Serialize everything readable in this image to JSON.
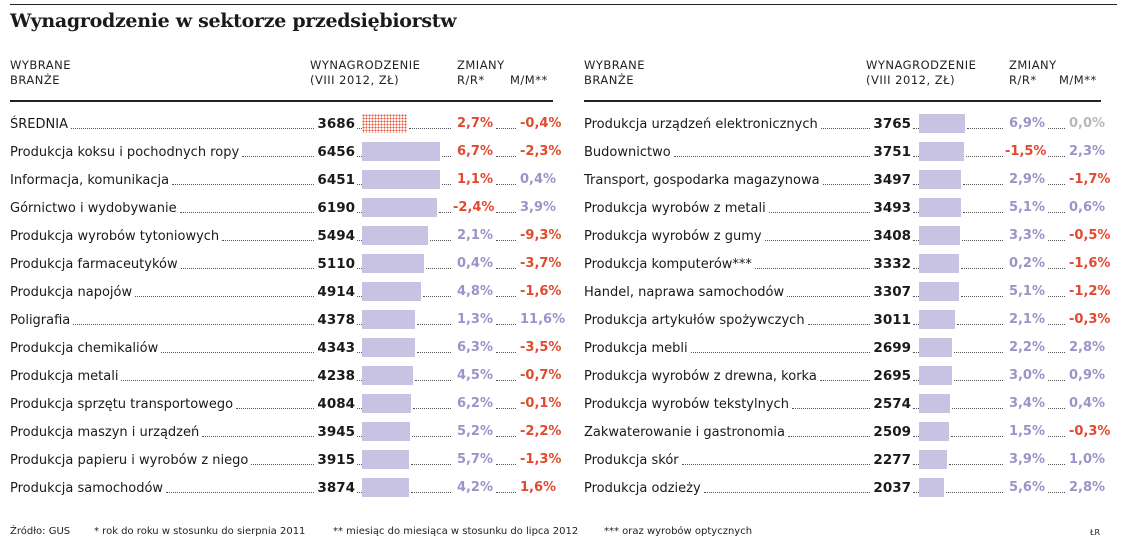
{
  "title": "Wynagrodzenie w sektorze przedsiębiorstw",
  "headers": {
    "col1": [
      "WYBRANE",
      "BRANŻE"
    ],
    "col2": [
      "WYNAGRODZENIE",
      "(VIII 2012, ZŁ)"
    ],
    "col3": "ZMIANY",
    "rr": "R/R*",
    "mm": "M/M**"
  },
  "colors": {
    "positive": "#9b94c9",
    "negative": "#e04a2e",
    "neutral": "#b8b8b8",
    "bar": "#c8c3e2",
    "average_pattern": "#e4533a"
  },
  "chart_data": [
    {
      "type": "bar",
      "xlabel": "WYNAGRODZENIE (VIII 2012, ZŁ)",
      "rows": [
        {
          "label": "ŚREDNIA",
          "value": 3686,
          "rr": "2,7%",
          "mm": "-0,4%",
          "rr_color": "negative",
          "mm_color": "negative",
          "average": true
        },
        {
          "label": "Produkcja koksu i pochodnych ropy",
          "value": 6456,
          "rr": "6,7%",
          "mm": "-2,3%",
          "rr_color": "negative",
          "mm_color": "negative"
        },
        {
          "label": "Informacja, komunikacja",
          "value": 6451,
          "rr": "1,1%",
          "mm": "0,4%",
          "rr_color": "negative",
          "mm_color": "positive"
        },
        {
          "label": "Górnictwo i wydobywanie",
          "value": 6190,
          "rr": "-2,4%",
          "mm": "3,9%",
          "rr_color": "negative",
          "mm_color": "positive"
        },
        {
          "label": "Produkcja wyrobów tytoniowych",
          "value": 5494,
          "rr": "2,1%",
          "mm": "-9,3%",
          "rr_color": "positive",
          "mm_color": "negative"
        },
        {
          "label": "Produkcja farmaceutyków",
          "value": 5110,
          "rr": "0,4%",
          "mm": "-3,7%",
          "rr_color": "positive",
          "mm_color": "negative"
        },
        {
          "label": "Produkcja napojów",
          "value": 4914,
          "rr": "4,8%",
          "mm": "-1,6%",
          "rr_color": "positive",
          "mm_color": "negative"
        },
        {
          "label": "Poligrafia",
          "value": 4378,
          "rr": "1,3%",
          "mm": "11,6%",
          "rr_color": "positive",
          "mm_color": "positive"
        },
        {
          "label": "Produkcja chemikaliów",
          "value": 4343,
          "rr": "6,3%",
          "mm": "-3,5%",
          "rr_color": "positive",
          "mm_color": "negative"
        },
        {
          "label": "Produkcja metali",
          "value": 4238,
          "rr": "4,5%",
          "mm": "-0,7%",
          "rr_color": "positive",
          "mm_color": "negative"
        },
        {
          "label": "Produkcja sprzętu transportowego",
          "value": 4084,
          "rr": "6,2%",
          "mm": "-0,1%",
          "rr_color": "positive",
          "mm_color": "negative"
        },
        {
          "label": "Produkcja maszyn i urządzeń",
          "value": 3945,
          "rr": "5,2%",
          "mm": "-2,2%",
          "rr_color": "positive",
          "mm_color": "negative"
        },
        {
          "label": "Produkcja papieru i wyrobów z niego",
          "value": 3915,
          "rr": "5,7%",
          "mm": "-1,3%",
          "rr_color": "positive",
          "mm_color": "negative"
        },
        {
          "label": "Produkcja samochodów",
          "value": 3874,
          "rr": "4,2%",
          "mm": "1,6%",
          "rr_color": "positive",
          "mm_color": "negative"
        }
      ]
    },
    {
      "type": "bar",
      "xlabel": "WYNAGRODZENIE (VIII 2012, ZŁ)",
      "rows": [
        {
          "label": "Produkcja urządzeń elektronicznych",
          "value": 3765,
          "rr": "6,9%",
          "mm": "0,0%",
          "rr_color": "positive",
          "mm_color": "neutral"
        },
        {
          "label": "Budownictwo",
          "value": 3751,
          "rr": "-1,5%",
          "mm": "2,3%",
          "rr_color": "negative",
          "mm_color": "positive"
        },
        {
          "label": "Transport, gospodarka magazynowa",
          "value": 3497,
          "rr": "2,9%",
          "mm": "-1,7%",
          "rr_color": "positive",
          "mm_color": "negative"
        },
        {
          "label": "Produkcja wyrobów z metali",
          "value": 3493,
          "rr": "5,1%",
          "mm": "0,6%",
          "rr_color": "positive",
          "mm_color": "positive"
        },
        {
          "label": "Produkcja wyrobów z gumy",
          "value": 3408,
          "rr": "3,3%",
          "mm": "-0,5%",
          "rr_color": "positive",
          "mm_color": "negative"
        },
        {
          "label": "Produkcja komputerów***",
          "value": 3332,
          "rr": "0,2%",
          "mm": "-1,6%",
          "rr_color": "positive",
          "mm_color": "negative"
        },
        {
          "label": "Handel, naprawa samochodów",
          "value": 3307,
          "rr": "5,1%",
          "mm": "-1,2%",
          "rr_color": "positive",
          "mm_color": "negative"
        },
        {
          "label": "Produkcja artykułów spożywczych",
          "value": 3011,
          "rr": "2,1%",
          "mm": "-0,3%",
          "rr_color": "positive",
          "mm_color": "negative"
        },
        {
          "label": "Produkcja mebli",
          "value": 2699,
          "rr": "2,2%",
          "mm": "2,8%",
          "rr_color": "positive",
          "mm_color": "positive"
        },
        {
          "label": "Produkcja wyrobów z drewna, korka",
          "value": 2695,
          "rr": "3,0%",
          "mm": "0,9%",
          "rr_color": "positive",
          "mm_color": "positive"
        },
        {
          "label": "Produkcja wyrobów tekstylnych",
          "value": 2574,
          "rr": "3,4%",
          "mm": "0,4%",
          "rr_color": "positive",
          "mm_color": "positive"
        },
        {
          "label": "Zakwaterowanie i gastronomia",
          "value": 2509,
          "rr": "1,5%",
          "mm": "-0,3%",
          "rr_color": "positive",
          "mm_color": "negative"
        },
        {
          "label": "Produkcja skór",
          "value": 2277,
          "rr": "3,9%",
          "mm": "1,0%",
          "rr_color": "positive",
          "mm_color": "positive"
        },
        {
          "label": "Produkcja odzieży",
          "value": 2037,
          "rr": "5,6%",
          "mm": "2,8%",
          "rr_color": "positive",
          "mm_color": "positive"
        }
      ]
    }
  ],
  "footer": {
    "source": "Źródło: GUS",
    "note1": "* rok do roku w stosunku do sierpnia 2011",
    "note2": "** miesiąc do miesiąca w stosunku do lipca 2012",
    "note3": "*** oraz wyrobów optycznych",
    "credit": "ŁR"
  }
}
